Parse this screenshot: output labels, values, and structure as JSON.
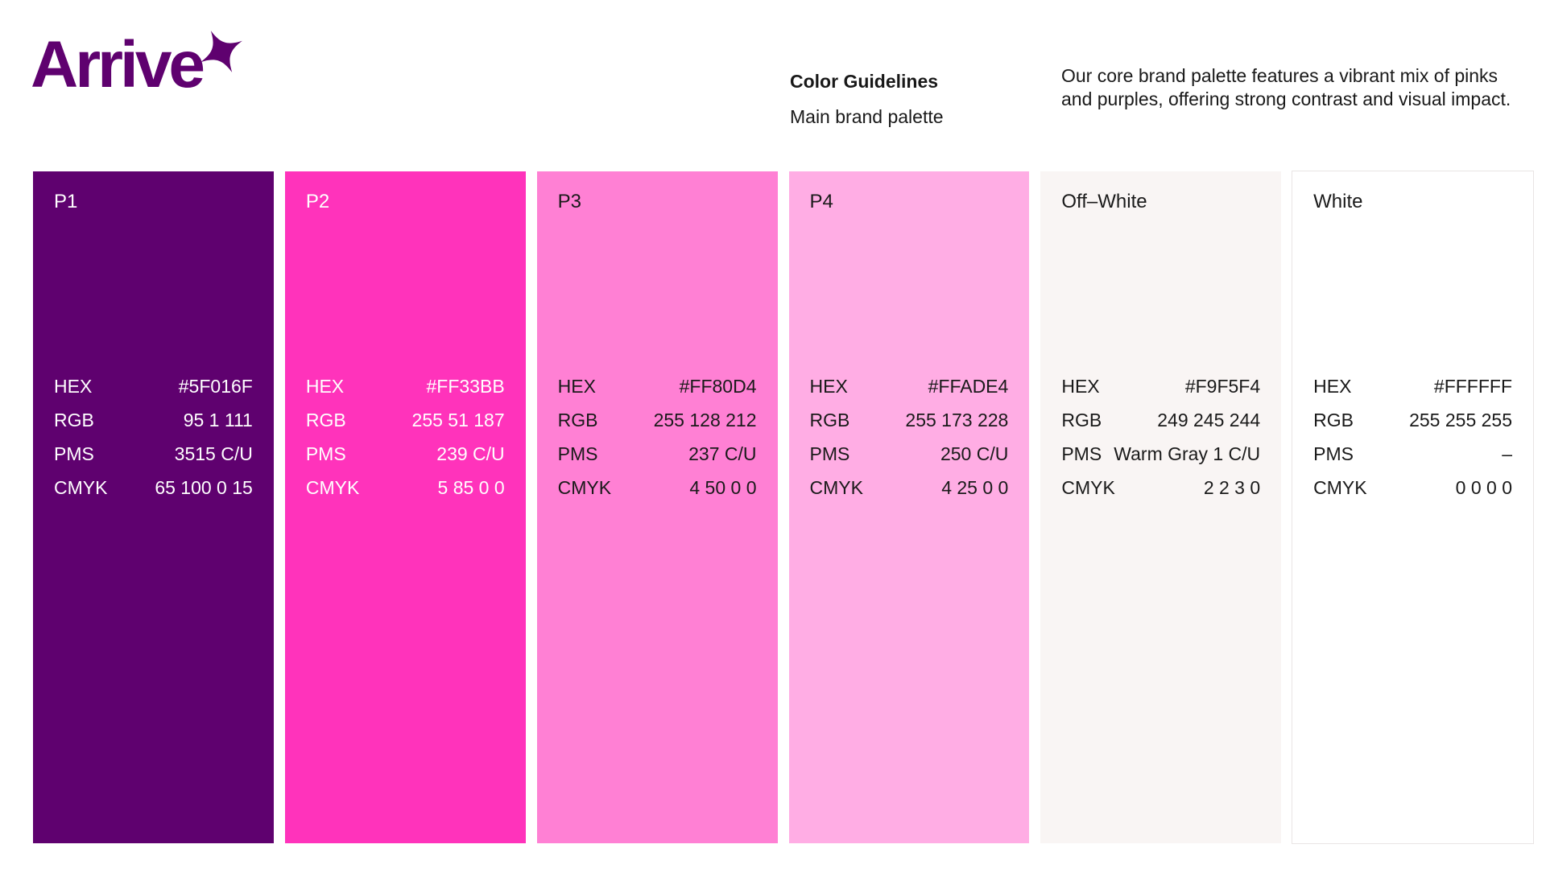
{
  "page": {
    "background": "#FFFFFF"
  },
  "header": {
    "logo": {
      "text": "Arrive",
      "color": "#5F016F",
      "icon": "sparkle-icon"
    },
    "section_title": "Color Guidelines",
    "section_subtitle": "Main brand palette",
    "description": "Our core brand palette features a vibrant mix of pinks and purples, offering strong contrast and visual impact."
  },
  "palette": {
    "row_labels": [
      "HEX",
      "RGB",
      "PMS",
      "CMYK"
    ],
    "swatches": [
      {
        "name": "P1",
        "hex": "#5F016F",
        "rgb": "95 1 111",
        "pms": "3515 C/U",
        "cmyk": "65 100 0 15",
        "text_color": "#FFFFFF",
        "border_color": ""
      },
      {
        "name": "P2",
        "hex": "#FF33BB",
        "rgb": "255 51 187",
        "pms": "239 C/U",
        "cmyk": "5 85 0 0",
        "text_color": "#FFFFFF",
        "border_color": ""
      },
      {
        "name": "P3",
        "hex": "#FF80D4",
        "rgb": "255 128 212",
        "pms": "237 C/U",
        "cmyk": "4 50 0 0",
        "text_color": "#1A1A1A",
        "border_color": ""
      },
      {
        "name": "P4",
        "hex": "#FFADE4",
        "rgb": "255 173 228",
        "pms": "250 C/U",
        "cmyk": "4 25 0 0",
        "text_color": "#1A1A1A",
        "border_color": ""
      },
      {
        "name": "Off–White",
        "hex": "#F9F5F4",
        "rgb": "249 245 244",
        "pms": "Warm Gray 1 C/U",
        "cmyk": "2 2 3 0",
        "text_color": "#1A1A1A",
        "border_color": ""
      },
      {
        "name": "White",
        "hex": "#FFFFFF",
        "rgb": "255 255 255",
        "pms": "–",
        "cmyk": "0 0 0 0",
        "text_color": "#1A1A1A",
        "border_color": "#E9E5E4"
      }
    ]
  }
}
